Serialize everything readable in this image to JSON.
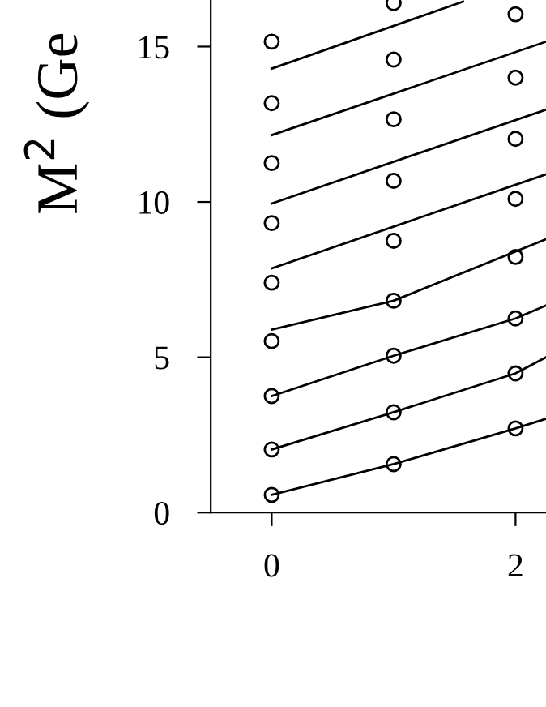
{
  "chart_data": {
    "type": "scatter",
    "ylabel": "M$^{2}$ (Ge",
    "xlim": [
      -0.5,
      2.25
    ],
    "ylim": [
      0,
      16.5
    ],
    "xticks": [
      0,
      2
    ],
    "yticks": [
      0,
      5,
      10,
      15
    ],
    "grid": false,
    "legend": false,
    "series": [
      {
        "marker": "circle",
        "color": "#000000",
        "x": [
          0,
          0,
          0,
          0,
          0,
          0,
          0,
          0,
          0,
          1,
          1,
          1,
          1,
          1,
          1,
          1,
          1,
          1,
          2,
          2,
          2,
          2,
          2,
          2,
          2,
          2
        ],
        "values": [
          0.57,
          2.03,
          3.75,
          5.52,
          7.4,
          9.32,
          11.25,
          13.18,
          15.16,
          1.56,
          3.23,
          5.05,
          6.82,
          8.75,
          10.68,
          12.66,
          14.58,
          16.4,
          2.71,
          4.48,
          6.25,
          8.23,
          10.1,
          12.03,
          14.0,
          16.04
        ]
      },
      {
        "type": "line",
        "color": "#000000",
        "x": [
          0,
          1,
          2,
          2.25
        ],
        "values": [
          0.57,
          1.56,
          2.71,
          3.02
        ]
      },
      {
        "type": "line",
        "color": "#000000",
        "x": [
          0,
          1,
          2,
          2.25
        ],
        "values": [
          2.03,
          3.23,
          4.48,
          5.0
        ]
      },
      {
        "type": "line",
        "color": "#000000",
        "x": [
          0,
          1,
          2,
          2.25
        ],
        "values": [
          3.75,
          5.05,
          6.25,
          6.67
        ]
      },
      {
        "type": "line",
        "color": "#000000",
        "x": [
          0,
          1,
          2.25
        ],
        "values": [
          5.89,
          6.82,
          8.8
        ]
      },
      {
        "type": "line",
        "color": "#000000",
        "x": [
          0,
          2.25
        ],
        "values": [
          7.86,
          10.89
        ]
      },
      {
        "type": "line",
        "color": "#000000",
        "x": [
          0,
          2.25
        ],
        "values": [
          9.95,
          12.97
        ]
      },
      {
        "type": "line",
        "color": "#000000",
        "x": [
          0,
          2.25
        ],
        "values": [
          12.15,
          15.16
        ]
      },
      {
        "type": "line",
        "color": "#000000",
        "x": [
          0,
          1.57
        ],
        "values": [
          14.29,
          16.45
        ]
      }
    ]
  }
}
